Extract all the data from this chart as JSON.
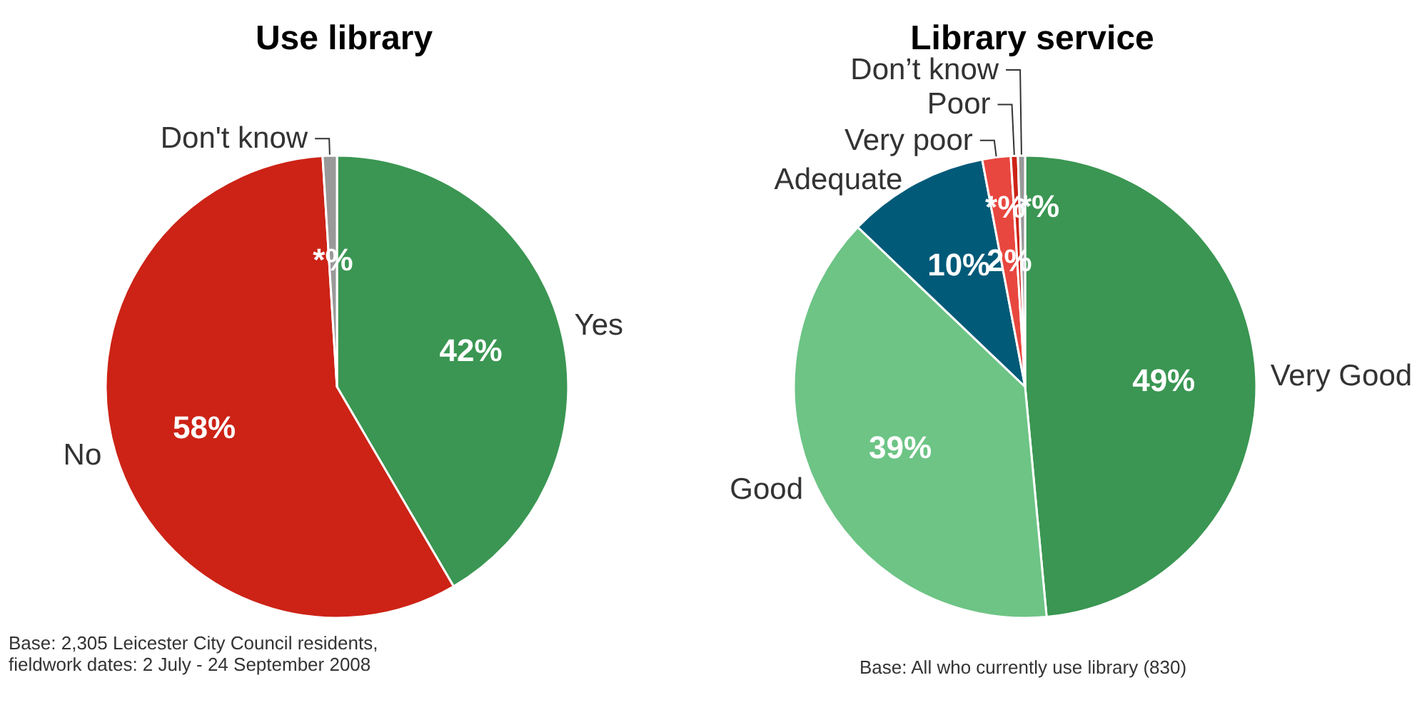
{
  "chart_data": [
    {
      "type": "pie",
      "title": "Use library",
      "categories": [
        "Yes",
        "No",
        "Don't know"
      ],
      "values": [
        42,
        58,
        1
      ],
      "value_labels": [
        "42%",
        "58%",
        "*%"
      ],
      "colors": [
        "#3a9652",
        "#cc2316",
        "#999999"
      ],
      "annotations": [
        "Base: 2,305 Leicester City Council residents,\nfieldwork dates: 2 July - 24 September 2008"
      ]
    },
    {
      "type": "pie",
      "title": "Library service",
      "categories": [
        "Very Good",
        "Good",
        "Adequate",
        "Very poor",
        "Poor",
        "Don’t know"
      ],
      "values": [
        49,
        39,
        10,
        2,
        0.5,
        0.5
      ],
      "value_labels": [
        "49%",
        "39%",
        "10%",
        "2%",
        "*%",
        "*%"
      ],
      "colors": [
        "#3a9652",
        "#6dc485",
        "#005a78",
        "#e8473f",
        "#cc2316",
        "#999999"
      ],
      "annotations": [
        "Base:  All who currently use library (830)"
      ]
    }
  ]
}
